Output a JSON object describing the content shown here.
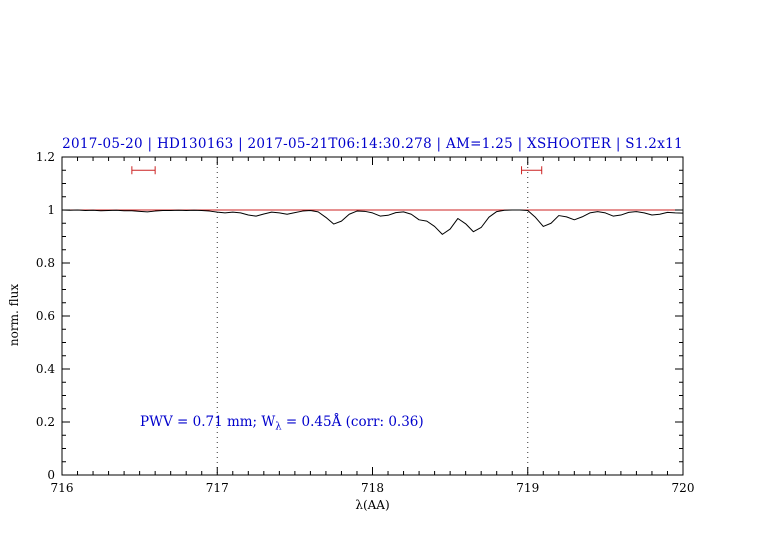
{
  "figure": {
    "title": "2017-05-20 | HD130163 | 2017-05-21T06:14:30.278 | AM=1.25 | XSHOOTER | S1.2x11",
    "annotation": {
      "pre": "PWV = 0.71 mm; W",
      "sub": "λ",
      "post": " = 0.45Å (corr: 0.36)"
    },
    "xlabel": "λ(AA)",
    "ylabel": "norm. flux",
    "colors": {
      "accent_blue": "#0000cc",
      "reference_red": "#cc2222",
      "spectrum_black": "#000000"
    }
  },
  "chart_data": {
    "type": "line",
    "title": "2017-05-20 | HD130163 | 2017-05-21T06:14:30.278 | AM=1.25 | XSHOOTER | S1.2x11",
    "xlabel": "λ(AA)",
    "ylabel": "norm. flux",
    "xlim": [
      716,
      720
    ],
    "ylim": [
      0,
      1.2
    ],
    "xticks": [
      716,
      717,
      718,
      719,
      720
    ],
    "xtick_labels": [
      "716",
      "717",
      "718",
      "719",
      "720"
    ],
    "yticks": [
      0,
      0.2,
      0.4,
      0.6,
      0.8,
      1,
      1.2
    ],
    "ytick_labels": [
      "0",
      "0.2",
      "0.4",
      "0.6",
      "0.8",
      "1",
      "1.2"
    ],
    "x_minor_step": 0.1,
    "y_minor_step": 0.05,
    "grid": false,
    "dotted_vlines": [
      717,
      719
    ],
    "reference_hline": 1.0,
    "red_markers": [
      {
        "x1": 716.45,
        "x2": 716.6,
        "y": 1.15
      },
      {
        "x1": 718.96,
        "x2": 719.09,
        "y": 1.15
      }
    ],
    "annotation_text": "PWV = 0.71 mm; Wλ = 0.45Å (corr: 0.36)",
    "series": [
      {
        "name": "normalized spectrum",
        "color": "#000000",
        "x": [
          716.0,
          716.05,
          716.1,
          716.15,
          716.2,
          716.25,
          716.3,
          716.35,
          716.4,
          716.45,
          716.5,
          716.55,
          716.6,
          716.65,
          716.7,
          716.75,
          716.8,
          716.85,
          716.9,
          716.95,
          717.0,
          717.05,
          717.1,
          717.15,
          717.2,
          717.25,
          717.3,
          717.35,
          717.4,
          717.45,
          717.5,
          717.55,
          717.6,
          717.65,
          717.7,
          717.75,
          717.8,
          717.85,
          717.9,
          717.95,
          718.0,
          718.05,
          718.1,
          718.15,
          718.2,
          718.25,
          718.3,
          718.35,
          718.4,
          718.45,
          718.5,
          718.55,
          718.6,
          718.65,
          718.7,
          718.75,
          718.8,
          718.85,
          718.9,
          718.95,
          719.0,
          719.05,
          719.1,
          719.15,
          719.2,
          719.25,
          719.3,
          719.35,
          719.4,
          719.45,
          719.5,
          719.55,
          719.6,
          719.65,
          719.7,
          719.75,
          719.8,
          719.85,
          719.9,
          719.95,
          720.0
        ],
        "y": [
          1.0,
          0.999,
          1.0,
          0.998,
          0.999,
          0.997,
          0.998,
          0.999,
          0.997,
          0.997,
          0.995,
          0.993,
          0.996,
          0.998,
          0.998,
          0.999,
          0.998,
          0.999,
          0.998,
          0.996,
          0.992,
          0.989,
          0.992,
          0.989,
          0.981,
          0.977,
          0.985,
          0.992,
          0.989,
          0.984,
          0.99,
          0.996,
          0.998,
          0.993,
          0.972,
          0.947,
          0.958,
          0.984,
          0.996,
          0.995,
          0.989,
          0.977,
          0.98,
          0.99,
          0.993,
          0.984,
          0.963,
          0.958,
          0.938,
          0.908,
          0.928,
          0.968,
          0.948,
          0.918,
          0.934,
          0.973,
          0.994,
          0.999,
          1.0,
          1.0,
          0.998,
          0.972,
          0.938,
          0.95,
          0.979,
          0.974,
          0.963,
          0.974,
          0.989,
          0.994,
          0.989,
          0.977,
          0.981,
          0.991,
          0.994,
          0.989,
          0.981,
          0.984,
          0.991,
          0.989,
          0.988
        ]
      }
    ]
  }
}
